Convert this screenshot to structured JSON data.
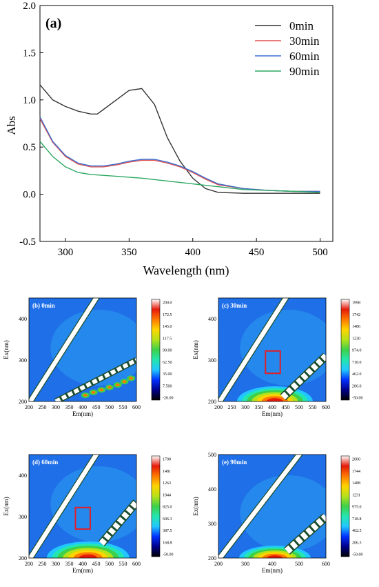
{
  "chart_data": [
    {
      "type": "line",
      "panel_label": "(a)",
      "xlabel": "Wavelength (nm)",
      "ylabel": "Abs",
      "xlim": [
        280,
        510
      ],
      "ylim": [
        -0.5,
        2.0
      ],
      "xticks": [
        300,
        350,
        400,
        450,
        500
      ],
      "yticks": [
        -0.5,
        0.0,
        0.5,
        1.0,
        1.5,
        2.0
      ],
      "legend_position": "top-right",
      "series": [
        {
          "name": "0min",
          "color": "#333333",
          "x": [
            280,
            290,
            300,
            310,
            320,
            325,
            330,
            340,
            350,
            360,
            370,
            380,
            390,
            400,
            410,
            420,
            440,
            460,
            480,
            500
          ],
          "y": [
            1.16,
            1.0,
            0.93,
            0.88,
            0.85,
            0.85,
            0.9,
            1.0,
            1.1,
            1.12,
            0.95,
            0.6,
            0.35,
            0.17,
            0.06,
            0.02,
            0.01,
            0.01,
            0.01,
            0.01
          ]
        },
        {
          "name": "30min",
          "color": "#e05050",
          "x": [
            280,
            290,
            300,
            310,
            320,
            330,
            340,
            350,
            360,
            370,
            380,
            390,
            400,
            410,
            420,
            440,
            460,
            480,
            500
          ],
          "y": [
            0.8,
            0.55,
            0.4,
            0.32,
            0.29,
            0.29,
            0.31,
            0.34,
            0.36,
            0.36,
            0.33,
            0.29,
            0.23,
            0.16,
            0.1,
            0.06,
            0.04,
            0.03,
            0.03
          ]
        },
        {
          "name": "60min",
          "color": "#3a6fd0",
          "x": [
            280,
            290,
            300,
            310,
            320,
            330,
            340,
            350,
            360,
            370,
            380,
            390,
            400,
            410,
            420,
            440,
            460,
            480,
            500
          ],
          "y": [
            0.82,
            0.56,
            0.41,
            0.33,
            0.3,
            0.3,
            0.32,
            0.35,
            0.37,
            0.37,
            0.34,
            0.3,
            0.24,
            0.17,
            0.11,
            0.06,
            0.04,
            0.03,
            0.03
          ]
        },
        {
          "name": "90min",
          "color": "#2aa860",
          "x": [
            280,
            290,
            300,
            310,
            320,
            340,
            360,
            380,
            400,
            420,
            440,
            460,
            480,
            500
          ],
          "y": [
            0.56,
            0.4,
            0.29,
            0.23,
            0.21,
            0.19,
            0.17,
            0.14,
            0.11,
            0.08,
            0.05,
            0.04,
            0.03,
            0.02
          ]
        }
      ]
    },
    {
      "type": "heatmap",
      "panel_label": "(b) 0min",
      "xlabel": "Em(nm)",
      "ylabel": "Ex(nm)",
      "xticks": [
        200,
        250,
        300,
        350,
        400,
        450,
        500,
        550,
        600
      ],
      "yticks": [
        200,
        300,
        400
      ],
      "colorbar": [
        "200.0",
        "172.5",
        "145.0",
        "117.5",
        "90.00",
        "62.50",
        "35.00",
        "7.500",
        "-20.00"
      ]
    },
    {
      "type": "heatmap",
      "panel_label": "(c) 30min",
      "xlabel": "Em(nm)",
      "ylabel": "Ex(nm)",
      "xticks": [
        200,
        250,
        300,
        350,
        400,
        450,
        500,
        550,
        600
      ],
      "yticks": [
        200,
        300,
        400
      ],
      "colorbar": [
        "1998",
        "1742",
        "1486",
        "1230",
        "974.0",
        "718.0",
        "462.0",
        "206.0",
        "-50.00"
      ]
    },
    {
      "type": "heatmap",
      "panel_label": "(d) 60min",
      "xlabel": "Em(nm)",
      "ylabel": "Ex(nm)",
      "xticks": [
        200,
        250,
        300,
        350,
        400,
        450,
        500,
        550,
        600
      ],
      "yticks": [
        200,
        300,
        400
      ],
      "colorbar": [
        "1700",
        "1481",
        "1263",
        "1044",
        "825.0",
        "606.3",
        "387.5",
        "168.8",
        "-50.00"
      ]
    },
    {
      "type": "heatmap",
      "panel_label": "(e) 90min",
      "xlabel": "Em(nm)",
      "ylabel": "Ex(nm)",
      "xticks": [
        200,
        300,
        400,
        500,
        600
      ],
      "yticks": [
        200,
        300,
        400,
        500
      ],
      "colorbar": [
        "2000",
        "1744",
        "1488",
        "1231",
        "975.0",
        "718.8",
        "462.5",
        "206.3",
        "-50.00"
      ]
    }
  ]
}
